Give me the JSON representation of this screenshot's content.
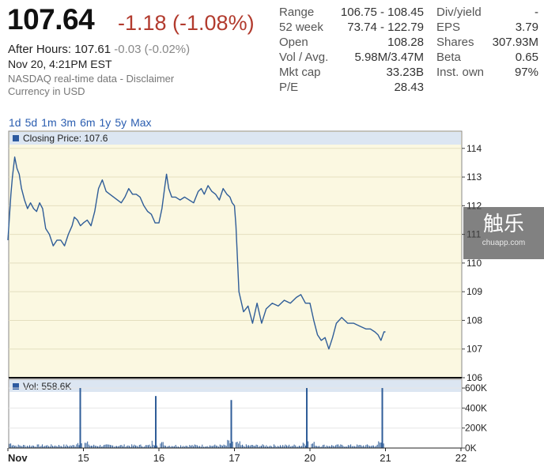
{
  "quote": {
    "price": "107.64",
    "change": "-1.18 (-1.08%)",
    "after_hours_label": "After Hours: 107.61",
    "after_hours_change": "-0.03 (-0.02%)",
    "datetime": "Nov 20, 4:21PM EST",
    "source": "NASDAQ real-time data - Disclaimer",
    "currency": "Currency in USD"
  },
  "stats_left": [
    {
      "label": "Range",
      "value": "106.75 - 108.45"
    },
    {
      "label": "52 week",
      "value": "73.74 - 122.79"
    },
    {
      "label": "Open",
      "value": "108.28"
    },
    {
      "label": "Vol / Avg.",
      "value": "5.98M/3.47M"
    },
    {
      "label": "Mkt cap",
      "value": "33.23B"
    },
    {
      "label": "P/E",
      "value": "28.43"
    }
  ],
  "stats_right": [
    {
      "label": "Div/yield",
      "value": "-"
    },
    {
      "label": "EPS",
      "value": "3.79"
    },
    {
      "label": "Shares",
      "value": "307.93M"
    },
    {
      "label": "Beta",
      "value": "0.65"
    },
    {
      "label": "Inst. own",
      "value": "97%"
    }
  ],
  "time_ranges": [
    "1d",
    "5d",
    "1m",
    "3m",
    "6m",
    "1y",
    "5y",
    "Max"
  ],
  "watermark": {
    "text": "触乐",
    "sub": "chuapp.com"
  },
  "colors": {
    "line": "#2f5d98",
    "price_panel_bg": "#fbf8e1",
    "legend_bar_bg": "#dce6f2",
    "change_red": "#b23b2e",
    "link_blue": "#2a5db0",
    "legend_swatch": "#2c5aa0"
  },
  "chart_data": [
    {
      "type": "line",
      "legend": "Closing Price: 107.6",
      "x_ticks": [
        "Nov",
        "15",
        "16",
        "17",
        "20",
        "21",
        "22"
      ],
      "x_tick_positions": [
        0,
        1,
        2,
        3,
        4,
        5,
        6
      ],
      "ylim": [
        106,
        114.6
      ],
      "y_ticks": [
        106,
        107,
        108,
        109,
        110,
        111,
        112,
        113,
        114
      ],
      "grid": "horizontal",
      "series": [
        {
          "x": [
            0,
            0.02,
            0.04,
            0.06,
            0.09,
            0.12,
            0.15,
            0.18,
            0.22,
            0.26,
            0.3,
            0.34,
            0.38,
            0.42,
            0.46,
            0.5,
            0.55,
            0.6,
            0.65,
            0.7,
            0.75,
            0.8,
            0.85,
            0.88,
            0.92,
            0.96,
            1.0,
            1.05,
            1.1,
            1.15,
            1.2,
            1.25,
            1.3,
            1.35,
            1.4,
            1.45,
            1.5,
            1.55,
            1.6,
            1.65,
            1.7,
            1.75,
            1.8,
            1.85,
            1.9,
            1.95,
            2.0,
            2.04,
            2.08,
            2.1,
            2.13,
            2.17,
            2.22,
            2.28,
            2.34,
            2.4,
            2.46,
            2.52,
            2.56,
            2.6,
            2.65,
            2.7,
            2.75,
            2.8,
            2.85,
            2.9,
            2.94,
            2.97,
            3.0,
            3.02,
            3.06,
            3.12,
            3.18,
            3.24,
            3.3,
            3.36,
            3.42,
            3.5,
            3.58,
            3.66,
            3.74,
            3.82,
            3.88,
            3.94,
            4.0,
            4.05,
            4.1,
            4.15,
            4.2,
            4.25,
            4.3,
            4.35,
            4.42,
            4.5,
            4.58,
            4.66,
            4.74,
            4.8,
            4.86,
            4.9,
            4.94,
            4.98,
            5.0
          ],
          "y": [
            110.8,
            111.6,
            112.4,
            113.0,
            113.7,
            113.3,
            113.1,
            112.6,
            112.2,
            111.9,
            112.1,
            111.9,
            111.8,
            112.1,
            111.9,
            111.2,
            111.0,
            110.6,
            110.8,
            110.8,
            110.6,
            111.0,
            111.3,
            111.6,
            111.5,
            111.3,
            111.4,
            111.5,
            111.3,
            111.8,
            112.6,
            112.9,
            112.5,
            112.4,
            112.3,
            112.2,
            112.1,
            112.3,
            112.6,
            112.4,
            112.4,
            112.3,
            112.0,
            111.8,
            111.7,
            111.4,
            111.4,
            111.9,
            112.7,
            113.1,
            112.6,
            112.3,
            112.3,
            112.2,
            112.3,
            112.2,
            112.1,
            112.5,
            112.6,
            112.4,
            112.7,
            112.5,
            112.4,
            112.2,
            112.6,
            112.4,
            112.3,
            112.1,
            112.0,
            111.3,
            109.0,
            108.3,
            108.5,
            107.9,
            108.6,
            107.9,
            108.4,
            108.6,
            108.5,
            108.7,
            108.6,
            108.8,
            108.9,
            108.6,
            108.6,
            108.0,
            107.5,
            107.3,
            107.4,
            107.0,
            107.4,
            107.9,
            108.1,
            107.9,
            107.9,
            107.8,
            107.7,
            107.7,
            107.6,
            107.5,
            107.3,
            107.6,
            107.6
          ]
        }
      ]
    },
    {
      "type": "bar",
      "legend": "Vol: 558.6K",
      "x_ticks": [
        "Nov",
        "15",
        "16",
        "17",
        "20",
        "21",
        "22"
      ],
      "ylim": [
        0,
        640000
      ],
      "y_ticks": [
        "0K",
        "200K",
        "400K",
        "600K"
      ],
      "y_tick_values": [
        0,
        200000,
        400000,
        600000
      ],
      "spikes": [
        {
          "x": 1.0,
          "value": 600000
        },
        {
          "x": 2.0,
          "value": 520000
        },
        {
          "x": 3.0,
          "value": 480000
        },
        {
          "x": 4.0,
          "value": 600000
        },
        {
          "x": 5.0,
          "value": 600000
        }
      ],
      "typical_bar_value": 30000
    }
  ]
}
